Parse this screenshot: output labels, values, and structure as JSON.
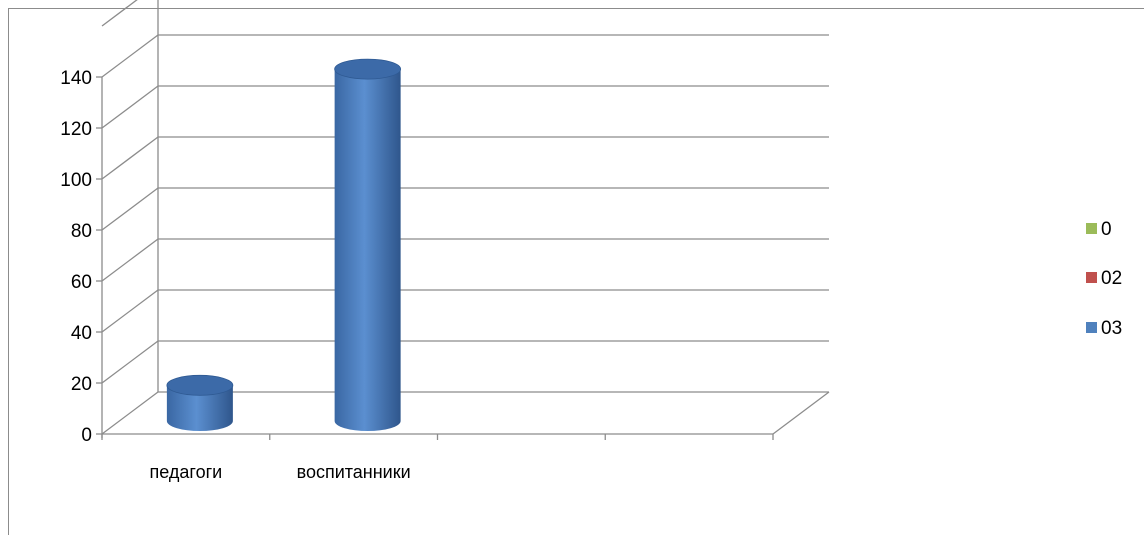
{
  "chart_data": {
    "type": "bar",
    "style": "3d-cylinder",
    "categories": [
      "педагоги",
      "воспитанники",
      "",
      ""
    ],
    "series": [
      {
        "name": "0",
        "color": "#9bbb59",
        "values": [
          0,
          0,
          0,
          0
        ]
      },
      {
        "name": "02",
        "color": "#c0504d",
        "values": [
          0,
          0,
          0,
          0
        ]
      },
      {
        "name": "03",
        "color": "#4f81bd",
        "values": [
          14,
          138,
          0,
          0
        ]
      }
    ],
    "ylim": [
      0,
      140
    ],
    "yticks": [
      0,
      20,
      40,
      60,
      80,
      100,
      120,
      140
    ],
    "grid": true,
    "legend_position": "right",
    "legend_order": [
      "0",
      "02",
      "03"
    ]
  }
}
